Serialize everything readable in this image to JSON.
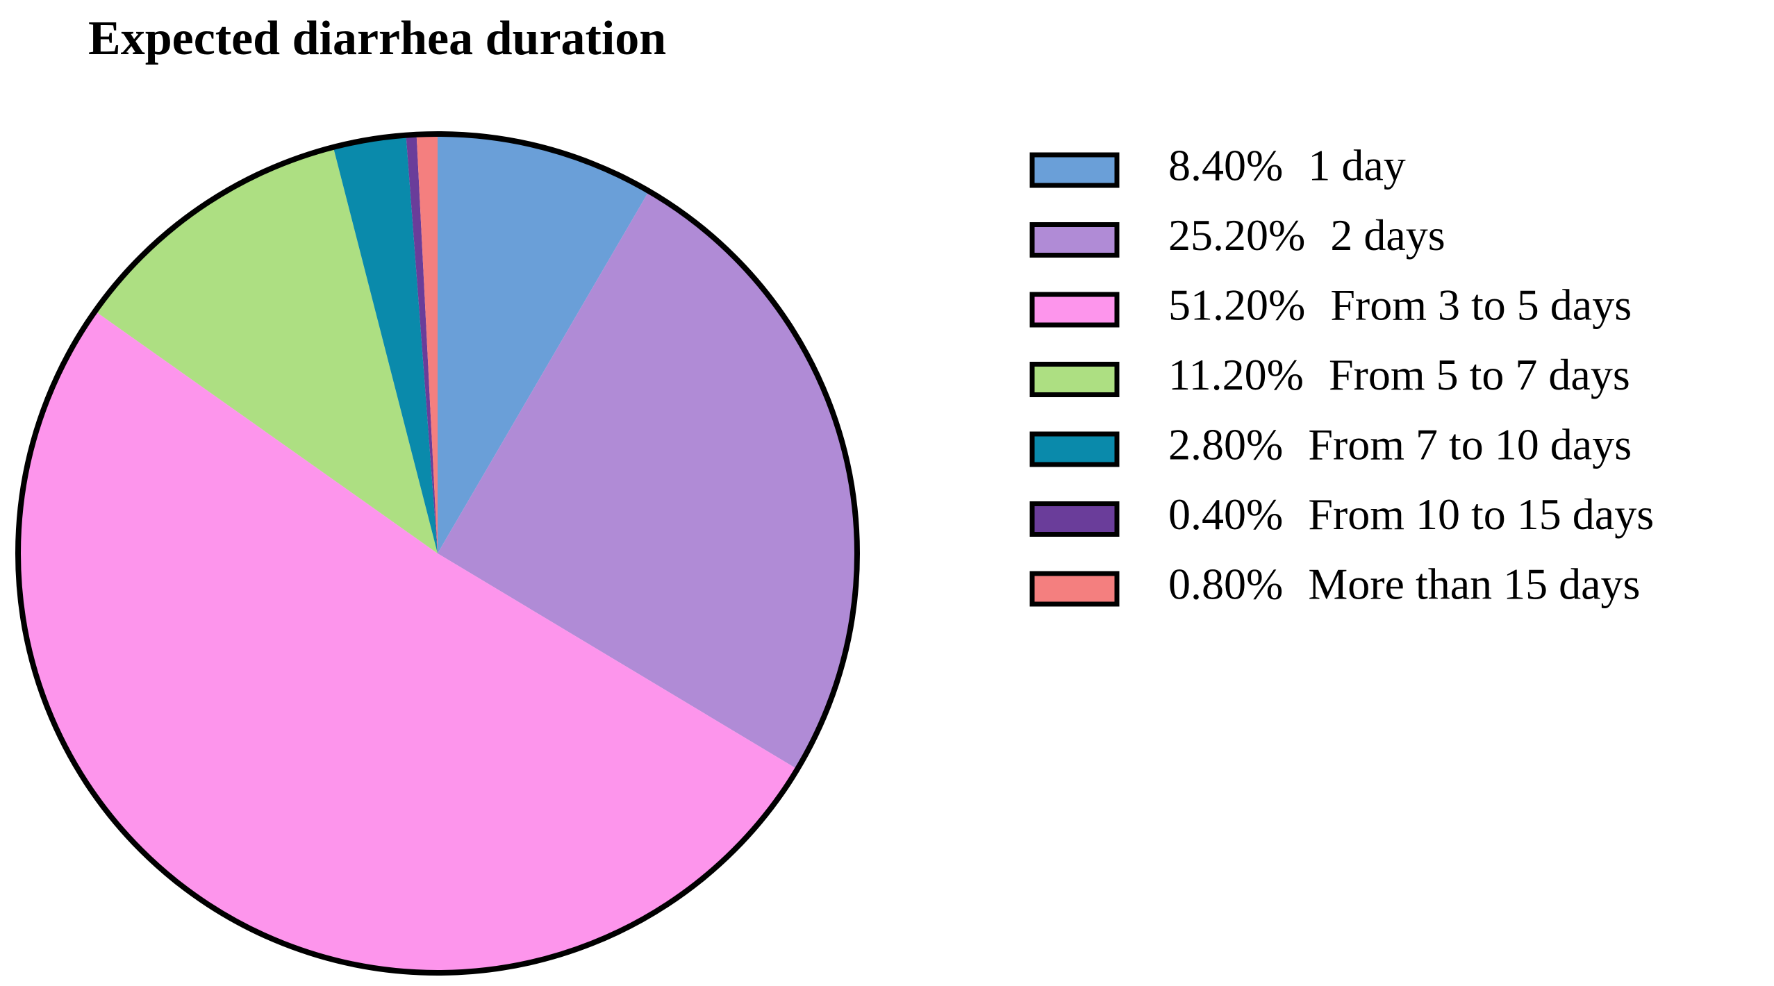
{
  "chart_data": {
    "type": "pie",
    "title": "Expected diarrhea duration",
    "categories": [
      "1 day",
      "2 days",
      "From 3 to 5 days",
      "From 5 to 7 days",
      "From 7 to 10 days",
      "From 10 to 15 days",
      "More than 15 days"
    ],
    "values": [
      8.4,
      25.2,
      51.2,
      11.2,
      2.8,
      0.4,
      0.8
    ],
    "value_labels": [
      "8.40%",
      "25.20%",
      "51.20%",
      "11.20%",
      "2.80%",
      "0.40%",
      "0.80%"
    ],
    "colors": [
      "#6a9fd8",
      "#b08bd6",
      "#fd95ec",
      "#addf82",
      "#0a8aab",
      "#6a3d9a",
      "#f47f7f"
    ]
  }
}
